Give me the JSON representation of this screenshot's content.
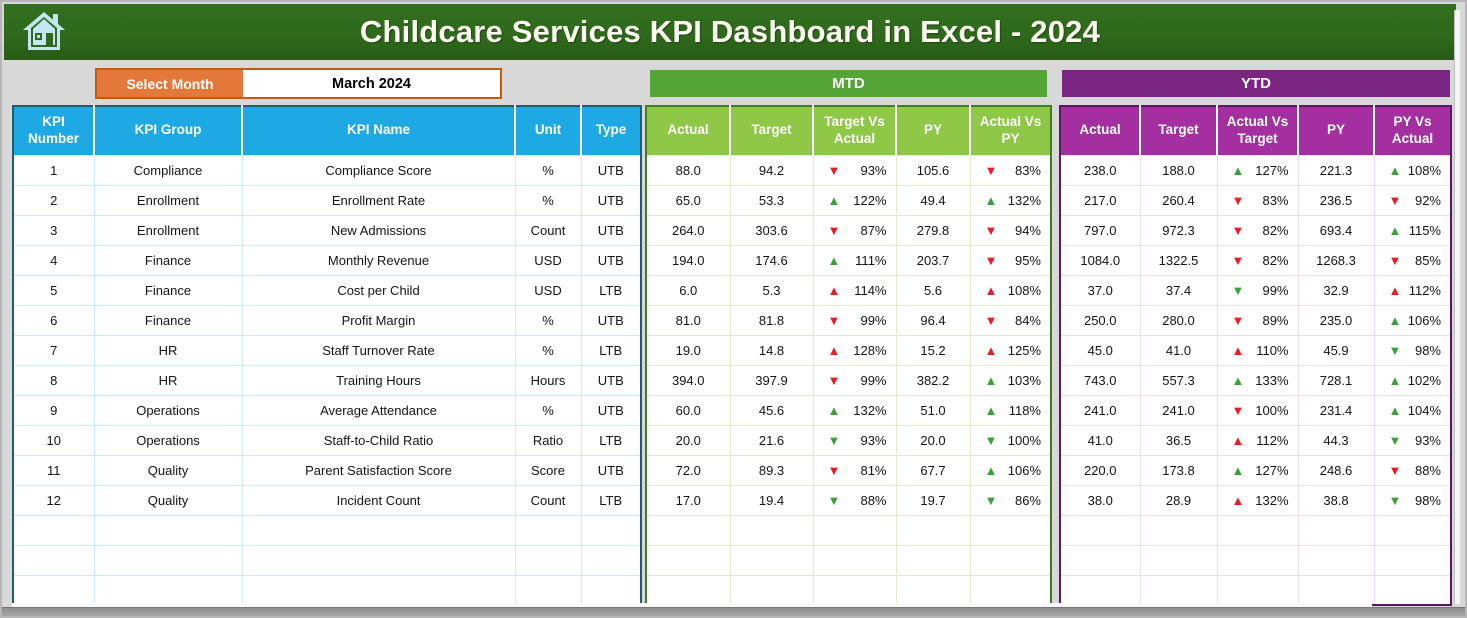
{
  "page": {
    "title": "Childcare Services KPI Dashboard in Excel - 2024"
  },
  "colors": {
    "header_green": "#2f6a1c",
    "mtd_bar_green": "#55a436",
    "mtd_header_green": "#8fc846",
    "ytd_bar_purple": "#7b2583",
    "ytd_header_purple": "#a42fa0",
    "kpi_header_blue": "#1fa9e4",
    "select_month_orange": "#e2793b",
    "trend_up_green": "#3ba23a",
    "trend_down_red": "#ec1c24"
  },
  "month_selector": {
    "label": "Select Month",
    "value": "March 2024"
  },
  "sections": {
    "mtd_label": "MTD",
    "ytd_label": "YTD"
  },
  "kpi_table": {
    "headers": [
      "KPI Number",
      "KPI Group",
      "KPI Name",
      "Unit",
      "Type"
    ],
    "rows": [
      {
        "number": "1",
        "group": "Compliance",
        "name": "Compliance Score",
        "unit": "%",
        "type": "UTB"
      },
      {
        "number": "2",
        "group": "Enrollment",
        "name": "Enrollment Rate",
        "unit": "%",
        "type": "UTB"
      },
      {
        "number": "3",
        "group": "Enrollment",
        "name": "New Admissions",
        "unit": "Count",
        "type": "UTB"
      },
      {
        "number": "4",
        "group": "Finance",
        "name": "Monthly Revenue",
        "unit": "USD",
        "type": "UTB"
      },
      {
        "number": "5",
        "group": "Finance",
        "name": "Cost per Child",
        "unit": "USD",
        "type": "LTB"
      },
      {
        "number": "6",
        "group": "Finance",
        "name": "Profit Margin",
        "unit": "%",
        "type": "UTB"
      },
      {
        "number": "7",
        "group": "HR",
        "name": "Staff Turnover Rate",
        "unit": "%",
        "type": "LTB"
      },
      {
        "number": "8",
        "group": "HR",
        "name": "Training Hours",
        "unit": "Hours",
        "type": "UTB"
      },
      {
        "number": "9",
        "group": "Operations",
        "name": "Average Attendance",
        "unit": "%",
        "type": "UTB"
      },
      {
        "number": "10",
        "group": "Operations",
        "name": "Staff-to-Child Ratio",
        "unit": "Ratio",
        "type": "LTB"
      },
      {
        "number": "11",
        "group": "Quality",
        "name": "Parent Satisfaction Score",
        "unit": "Score",
        "type": "UTB"
      },
      {
        "number": "12",
        "group": "Quality",
        "name": "Incident Count",
        "unit": "Count",
        "type": "LTB"
      }
    ],
    "empty_rows": 3
  },
  "mtd_table": {
    "headers": [
      "Actual",
      "Target",
      "Target Vs Actual",
      "PY",
      "Actual Vs PY"
    ],
    "rows": [
      {
        "actual": "88.0",
        "target": "94.2",
        "t1": {
          "dir": "down",
          "color": "red",
          "value": "93%"
        },
        "py": "105.6",
        "t2": {
          "dir": "down",
          "color": "red",
          "value": "83%"
        }
      },
      {
        "actual": "65.0",
        "target": "53.3",
        "t1": {
          "dir": "up",
          "color": "green",
          "value": "122%"
        },
        "py": "49.4",
        "t2": {
          "dir": "up",
          "color": "green",
          "value": "132%"
        }
      },
      {
        "actual": "264.0",
        "target": "303.6",
        "t1": {
          "dir": "down",
          "color": "red",
          "value": "87%"
        },
        "py": "279.8",
        "t2": {
          "dir": "down",
          "color": "red",
          "value": "94%"
        }
      },
      {
        "actual": "194.0",
        "target": "174.6",
        "t1": {
          "dir": "up",
          "color": "green",
          "value": "111%"
        },
        "py": "203.7",
        "t2": {
          "dir": "down",
          "color": "red",
          "value": "95%"
        }
      },
      {
        "actual": "6.0",
        "target": "5.3",
        "t1": {
          "dir": "up",
          "color": "red",
          "value": "114%"
        },
        "py": "5.6",
        "t2": {
          "dir": "up",
          "color": "red",
          "value": "108%"
        }
      },
      {
        "actual": "81.0",
        "target": "81.8",
        "t1": {
          "dir": "down",
          "color": "red",
          "value": "99%"
        },
        "py": "96.4",
        "t2": {
          "dir": "down",
          "color": "red",
          "value": "84%"
        }
      },
      {
        "actual": "19.0",
        "target": "14.8",
        "t1": {
          "dir": "up",
          "color": "red",
          "value": "128%"
        },
        "py": "15.2",
        "t2": {
          "dir": "up",
          "color": "red",
          "value": "125%"
        }
      },
      {
        "actual": "394.0",
        "target": "397.9",
        "t1": {
          "dir": "down",
          "color": "red",
          "value": "99%"
        },
        "py": "382.2",
        "t2": {
          "dir": "up",
          "color": "green",
          "value": "103%"
        }
      },
      {
        "actual": "60.0",
        "target": "45.6",
        "t1": {
          "dir": "up",
          "color": "green",
          "value": "132%"
        },
        "py": "51.0",
        "t2": {
          "dir": "up",
          "color": "green",
          "value": "118%"
        }
      },
      {
        "actual": "20.0",
        "target": "21.6",
        "t1": {
          "dir": "down",
          "color": "green",
          "value": "93%"
        },
        "py": "20.0",
        "t2": {
          "dir": "down",
          "color": "green",
          "value": "100%"
        }
      },
      {
        "actual": "72.0",
        "target": "89.3",
        "t1": {
          "dir": "down",
          "color": "red",
          "value": "81%"
        },
        "py": "67.7",
        "t2": {
          "dir": "up",
          "color": "green",
          "value": "106%"
        }
      },
      {
        "actual": "17.0",
        "target": "19.4",
        "t1": {
          "dir": "down",
          "color": "green",
          "value": "88%"
        },
        "py": "19.7",
        "t2": {
          "dir": "down",
          "color": "green",
          "value": "86%"
        }
      }
    ],
    "empty_rows": 3
  },
  "ytd_table": {
    "headers": [
      "Actual",
      "Target",
      "Actual Vs Target",
      "PY",
      "PY Vs Actual"
    ],
    "rows": [
      {
        "actual": "238.0",
        "target": "188.0",
        "t1": {
          "dir": "up",
          "color": "green",
          "value": "127%"
        },
        "py": "221.3",
        "t2": {
          "dir": "up",
          "color": "green",
          "value": "108%"
        }
      },
      {
        "actual": "217.0",
        "target": "260.4",
        "t1": {
          "dir": "down",
          "color": "red",
          "value": "83%"
        },
        "py": "236.5",
        "t2": {
          "dir": "down",
          "color": "red",
          "value": "92%"
        }
      },
      {
        "actual": "797.0",
        "target": "972.3",
        "t1": {
          "dir": "down",
          "color": "red",
          "value": "82%"
        },
        "py": "693.4",
        "t2": {
          "dir": "up",
          "color": "green",
          "value": "115%"
        }
      },
      {
        "actual": "1084.0",
        "target": "1322.5",
        "t1": {
          "dir": "down",
          "color": "red",
          "value": "82%"
        },
        "py": "1268.3",
        "t2": {
          "dir": "down",
          "color": "red",
          "value": "85%"
        }
      },
      {
        "actual": "37.0",
        "target": "37.4",
        "t1": {
          "dir": "down",
          "color": "green",
          "value": "99%"
        },
        "py": "32.9",
        "t2": {
          "dir": "up",
          "color": "red",
          "value": "112%"
        }
      },
      {
        "actual": "250.0",
        "target": "280.0",
        "t1": {
          "dir": "down",
          "color": "red",
          "value": "89%"
        },
        "py": "235.0",
        "t2": {
          "dir": "up",
          "color": "green",
          "value": "106%"
        }
      },
      {
        "actual": "45.0",
        "target": "41.0",
        "t1": {
          "dir": "up",
          "color": "red",
          "value": "110%"
        },
        "py": "45.9",
        "t2": {
          "dir": "down",
          "color": "green",
          "value": "98%"
        }
      },
      {
        "actual": "743.0",
        "target": "557.3",
        "t1": {
          "dir": "up",
          "color": "green",
          "value": "133%"
        },
        "py": "728.1",
        "t2": {
          "dir": "up",
          "color": "green",
          "value": "102%"
        }
      },
      {
        "actual": "241.0",
        "target": "241.0",
        "t1": {
          "dir": "down",
          "color": "red",
          "value": "100%"
        },
        "py": "231.4",
        "t2": {
          "dir": "up",
          "color": "green",
          "value": "104%"
        }
      },
      {
        "actual": "41.0",
        "target": "36.5",
        "t1": {
          "dir": "up",
          "color": "red",
          "value": "112%"
        },
        "py": "44.3",
        "t2": {
          "dir": "down",
          "color": "green",
          "value": "93%"
        }
      },
      {
        "actual": "220.0",
        "target": "173.8",
        "t1": {
          "dir": "up",
          "color": "green",
          "value": "127%"
        },
        "py": "248.6",
        "t2": {
          "dir": "down",
          "color": "red",
          "value": "88%"
        }
      },
      {
        "actual": "38.0",
        "target": "28.9",
        "t1": {
          "dir": "up",
          "color": "red",
          "value": "132%"
        },
        "py": "38.8",
        "t2": {
          "dir": "down",
          "color": "green",
          "value": "98%"
        }
      }
    ],
    "empty_rows": 3
  }
}
